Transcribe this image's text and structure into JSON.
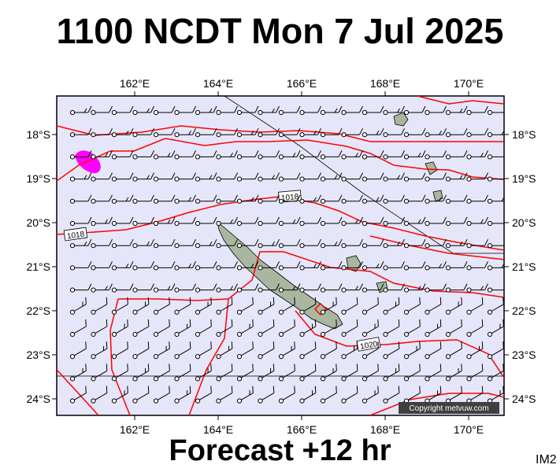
{
  "title": "1100 NCDT Mon 7 Jul 2025",
  "footer": "Forecast +12 hr",
  "tag": "IM2",
  "copyright": "Copyright metvuw.com",
  "lon_labels": [
    "162°E",
    "164°E",
    "166°E",
    "168°E",
    "170°E"
  ],
  "lat_labels": [
    "18°S",
    "19°S",
    "20°S",
    "21°S",
    "22°S",
    "23°S",
    "24°S"
  ],
  "isobar_labels": [
    "1018",
    "1018",
    "1020"
  ],
  "colors": {
    "ocean": "#e6e6fa",
    "isobar": "#ff0000",
    "land": "#a9b7a0",
    "rain": "#ff00ff",
    "barb": "#000000"
  },
  "icons": {
    "barb": "wind-barb-icon"
  }
}
